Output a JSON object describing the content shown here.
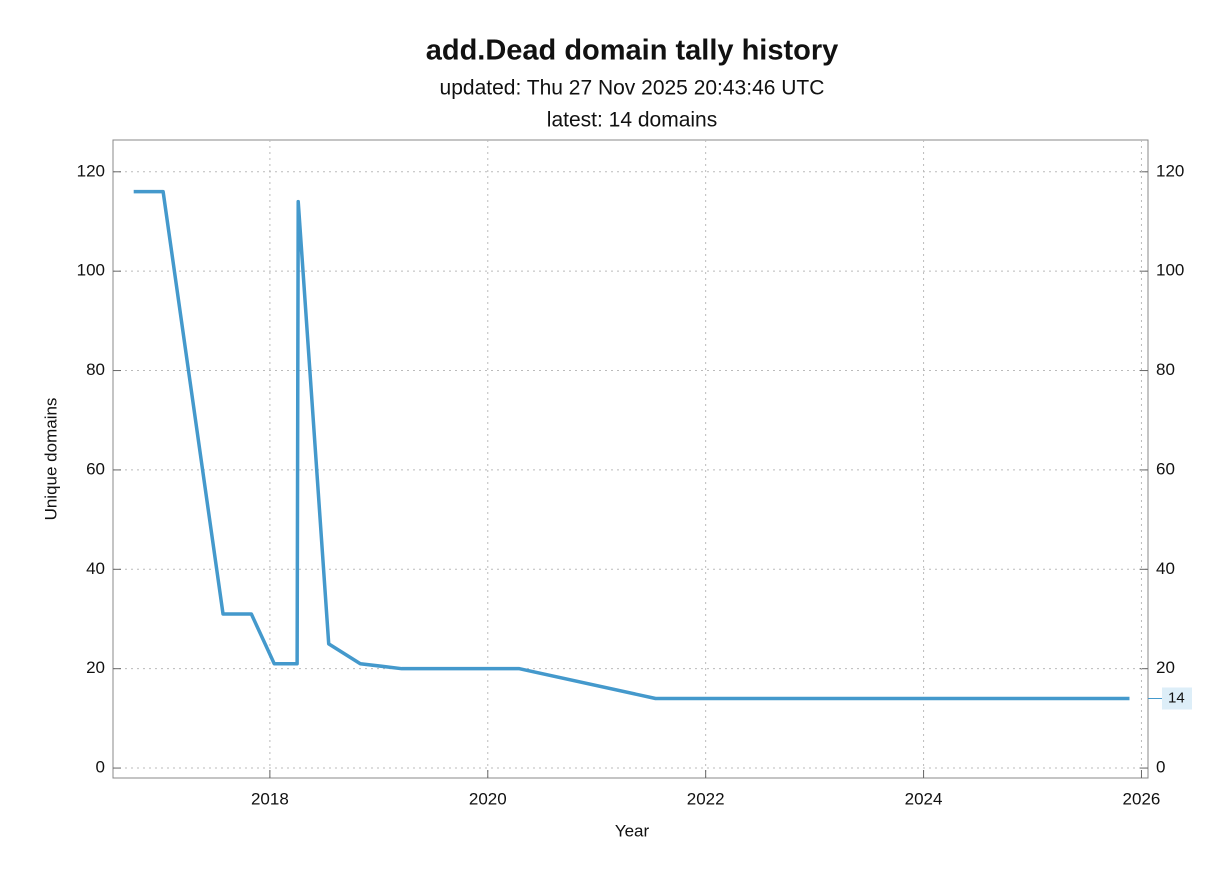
{
  "chart_data": {
    "type": "line",
    "title": "add.Dead domain tally history",
    "subtitles": [
      "updated: Thu 27 Nov 2025 20:43:46 UTC",
      "latest: 14 domains"
    ],
    "x_label": "Year",
    "y_label": "Unique domains",
    "x": [
      2016.75,
      2017.02,
      2017.57,
      2017.83,
      2018.04,
      2018.25,
      2018.26,
      2018.54,
      2018.83,
      2019.21,
      2020.29,
      2021.54,
      2025.89
    ],
    "series": [
      {
        "name": "Unique domains",
        "color": "#4499cc",
        "values": [
          116,
          116,
          31,
          31,
          21,
          21,
          114,
          25,
          21,
          20,
          20,
          14,
          14
        ]
      }
    ],
    "xlim": [
      2016.56,
      2026.06
    ],
    "xticks": [
      2018,
      2020,
      2022,
      2024,
      2026
    ],
    "ylim": [
      -2,
      126.4
    ],
    "yticks": [
      0,
      20,
      40,
      60,
      80,
      100,
      120
    ],
    "grid": true,
    "right_axis": true,
    "last_value_label": true
  }
}
